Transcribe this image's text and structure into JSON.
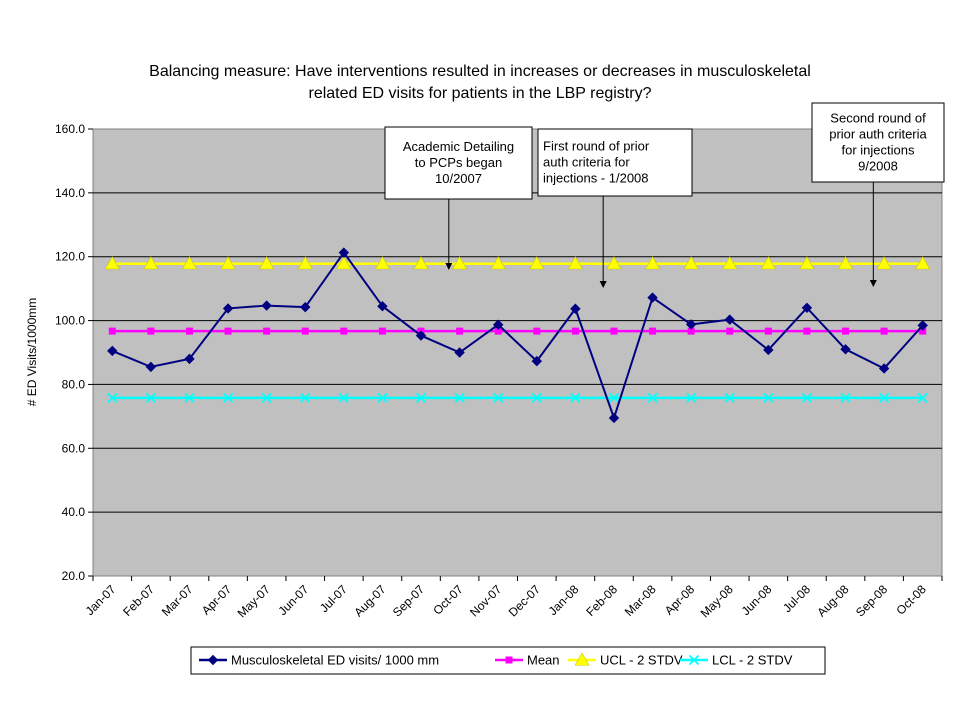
{
  "chart_data": {
    "type": "line",
    "title_lines": [
      "Balancing measure: Have interventions resulted in increases or decreases in  musculoskeletal",
      "related ED visits for patients in the LBP registry?"
    ],
    "ylabel": "# ED Visits/1000mm",
    "ylim": [
      20,
      160
    ],
    "y_ticks": [
      "20.0",
      "40.0",
      "60.0",
      "80.0",
      "100.0",
      "120.0",
      "140.0",
      "160.0"
    ],
    "categories": [
      "Jan-07",
      "Feb-07",
      "Mar-07",
      "Apr-07",
      "May-07",
      "Jun-07",
      "Jul-07",
      "Aug-07",
      "Sep-07",
      "Oct-07",
      "Nov-07",
      "Dec-07",
      "Jan-08",
      "Feb-08",
      "Mar-08",
      "Apr-08",
      "May-08",
      "Jun-08",
      "Jul-08",
      "Aug-08",
      "Sep-08",
      "Oct-08"
    ],
    "grid": true,
    "legend_position": "bottom",
    "series": [
      {
        "name": "Musculoskeletal ED visits/ 1000 mm",
        "color": "#000080",
        "marker": "diamond",
        "values": [
          90.5,
          85.5,
          88,
          103.8,
          104.7,
          104.2,
          121.3,
          104.5,
          95.3,
          90,
          98.7,
          87.3,
          103.7,
          69.5,
          107.2,
          98.8,
          100.3,
          90.8,
          104,
          91,
          85,
          98.5
        ]
      },
      {
        "name": "Mean",
        "color": "#ff00ff",
        "marker": "square",
        "values": [
          96.7,
          96.7,
          96.7,
          96.7,
          96.7,
          96.7,
          96.7,
          96.7,
          96.7,
          96.7,
          96.7,
          96.7,
          96.7,
          96.7,
          96.7,
          96.7,
          96.7,
          96.7,
          96.7,
          96.7,
          96.7,
          96.7
        ]
      },
      {
        "name": "UCL - 2 STDV",
        "color": "#ffff00",
        "marker": "triangle",
        "values": [
          117.8,
          117.8,
          117.8,
          117.8,
          117.8,
          117.8,
          117.8,
          117.8,
          117.8,
          117.8,
          117.8,
          117.8,
          117.8,
          117.8,
          117.8,
          117.8,
          117.8,
          117.8,
          117.8,
          117.8,
          117.8,
          117.8
        ]
      },
      {
        "name": "LCL - 2 STDV",
        "color": "#00ffff",
        "marker": "x",
        "values": [
          75.8,
          75.8,
          75.8,
          75.8,
          75.8,
          75.8,
          75.8,
          75.8,
          75.8,
          75.8,
          75.8,
          75.8,
          75.8,
          75.8,
          75.8,
          75.8,
          75.8,
          75.8,
          75.8,
          75.8,
          75.8,
          75.8
        ]
      }
    ],
    "annotations": [
      {
        "lines": [
          "Academic Detailing",
          "to PCPs began",
          "10/2007"
        ],
        "points_to": "Oct-07"
      },
      {
        "lines": [
          "First round of prior",
          "auth criteria for",
          "injections - 1/2008"
        ],
        "points_to": "Feb-08"
      },
      {
        "lines": [
          "Second round of",
          "prior auth criteria",
          "for injections",
          "9/2008"
        ],
        "points_to": "Sep-08"
      }
    ]
  }
}
